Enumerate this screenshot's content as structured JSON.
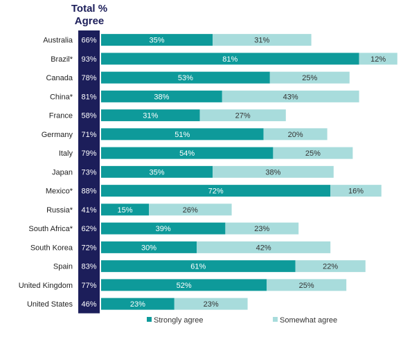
{
  "header": {
    "line1": "Total %",
    "line2": "Agree"
  },
  "chart_data": {
    "type": "bar",
    "orientation": "horizontal",
    "stacked": true,
    "categories": [
      "Australia",
      "Brazil*",
      "Canada",
      "China*",
      "France",
      "Germany",
      "Italy",
      "Japan",
      "Mexico*",
      "Russia*",
      "South Africa*",
      "South Korea",
      "Spain",
      "United Kingdom",
      "United States"
    ],
    "totals": [
      "66%",
      "93%",
      "78%",
      "81%",
      "58%",
      "71%",
      "79%",
      "73%",
      "88%",
      "41%",
      "62%",
      "72%",
      "83%",
      "77%",
      "46%"
    ],
    "series": [
      {
        "name": "Strongly agree",
        "color": "#0e9a9a",
        "values": [
          35,
          81,
          53,
          38,
          31,
          51,
          54,
          35,
          72,
          15,
          39,
          30,
          61,
          52,
          23
        ]
      },
      {
        "name": "Somewhat agree",
        "color": "#a8dcdc",
        "values": [
          31,
          12,
          25,
          43,
          27,
          20,
          25,
          38,
          16,
          26,
          23,
          42,
          22,
          25,
          23
        ]
      }
    ],
    "value_suffix": "%",
    "xlim": [
      0,
      100
    ],
    "total_column_color": "#1c1e5a",
    "legend_position": "bottom",
    "grid": false
  }
}
